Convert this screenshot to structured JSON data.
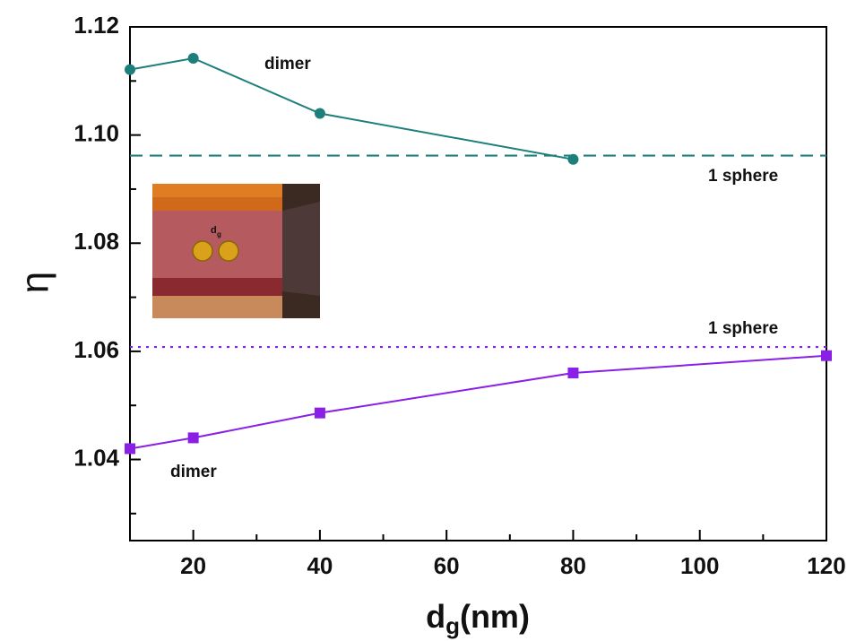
{
  "chart_data": {
    "type": "line",
    "ylabel": "η",
    "xlabel": {
      "text": "d",
      "subscript": "g",
      "suffix": "(nm)"
    },
    "xlim": [
      10,
      120
    ],
    "xticks": [
      20,
      40,
      60,
      80,
      100,
      120
    ],
    "xminorticks": [
      10,
      30,
      50,
      70,
      90,
      110
    ],
    "ylim": [
      1.025,
      1.12
    ],
    "yticks": [
      {
        "value": 1.04,
        "label": "1.04"
      },
      {
        "value": 1.06,
        "label": "1.06"
      },
      {
        "value": 1.08,
        "label": "1.08"
      },
      {
        "value": 1.1,
        "label": "1.10"
      },
      {
        "value": 1.12,
        "label": "1.12"
      }
    ],
    "yminorticks": [
      1.03,
      1.05,
      1.07,
      1.09,
      1.11
    ],
    "series": [
      {
        "color": "#1d7f7c",
        "marker": "circle",
        "x": [
          10,
          20,
          40,
          80
        ],
        "values": [
          1.1121,
          1.1142,
          1.104,
          1.0955
        ]
      },
      {
        "color": "#8a1fe6",
        "marker": "square",
        "x": [
          10,
          20,
          40,
          80,
          120
        ],
        "values": [
          1.042,
          1.044,
          1.0486,
          1.056,
          1.0592
        ]
      }
    ],
    "reference_lines": [
      {
        "value": 1.0962,
        "color": "#1d7f7c",
        "style": "dashed"
      },
      {
        "value": 1.0608,
        "color": "#8a1fe6",
        "style": "dotted"
      }
    ],
    "annotations": [
      "dimer",
      "1 sphere",
      "1 sphere",
      "dimer"
    ],
    "inset_label": {
      "text": "d",
      "subscript": "g"
    }
  }
}
